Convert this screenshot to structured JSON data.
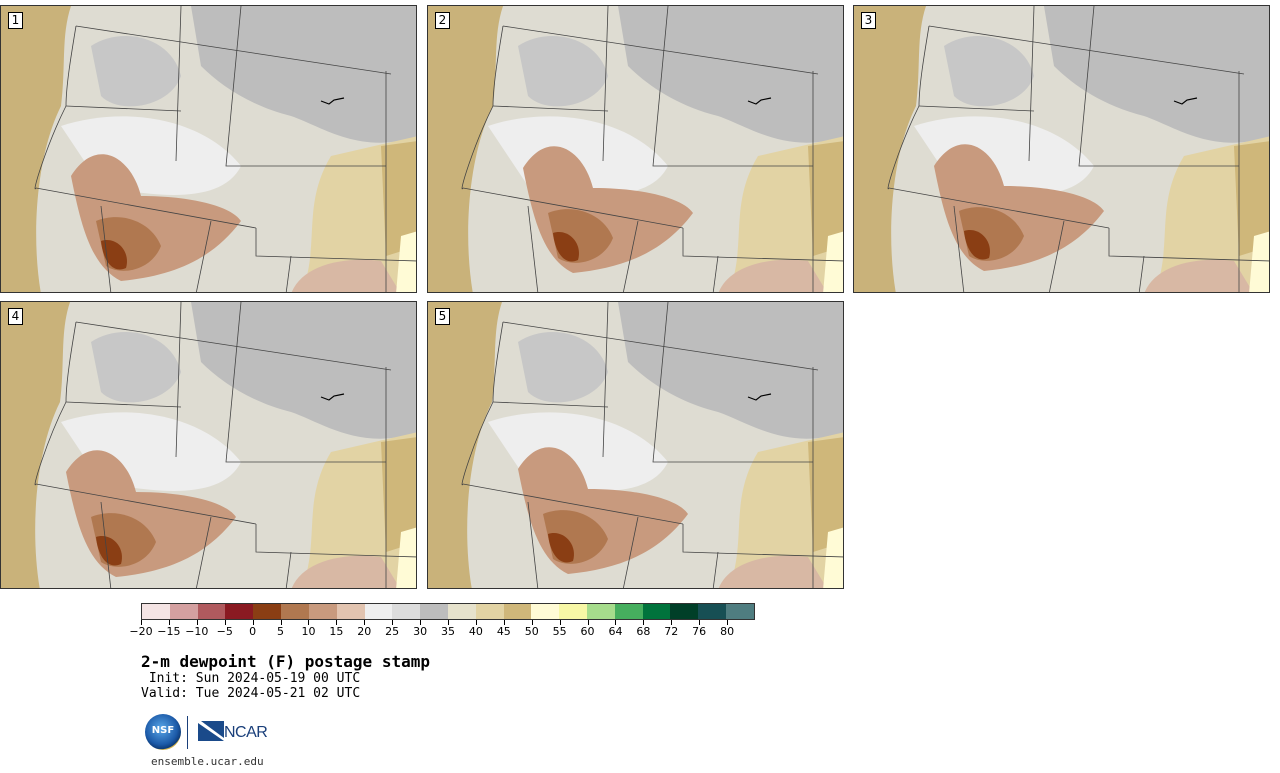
{
  "panels": [
    {
      "id": "p1",
      "label": "1"
    },
    {
      "id": "p2",
      "label": "2"
    },
    {
      "id": "p3",
      "label": "3"
    },
    {
      "id": "p4",
      "label": "4"
    },
    {
      "id": "p5",
      "label": "5"
    }
  ],
  "legend": {
    "colors": [
      "#f4e4e4",
      "#d4a0a0",
      "#b05a5e",
      "#8a1a22",
      "#8a3e14",
      "#b07850",
      "#c89a7e",
      "#e2c4b0",
      "#efefef",
      "#dcdcdc",
      "#bdbdbd",
      "#e6e2cc",
      "#e2d3a4",
      "#cfb77a",
      "#fffbd6",
      "#f7f7a6",
      "#a6dc8c",
      "#46ae5e",
      "#00733c",
      "#003f28",
      "#174f54",
      "#4f7d80"
    ],
    "ticks": [
      "−20",
      "−15",
      "−10",
      "−5",
      "0",
      "5",
      "10",
      "15",
      "20",
      "25",
      "30",
      "35",
      "40",
      "45",
      "50",
      "55",
      "60",
      "64",
      "68",
      "72",
      "76",
      "80"
    ]
  },
  "title": "2-m dewpoint (F) postage stamp",
  "init": " Init: Sun 2024-05-19 00 UTC",
  "valid": "Valid: Tue 2024-05-21 02 UTC",
  "logos": {
    "nsf_text": "NSF",
    "ncar_text": "NCAR"
  },
  "site": "ensemble.ucar.edu"
}
